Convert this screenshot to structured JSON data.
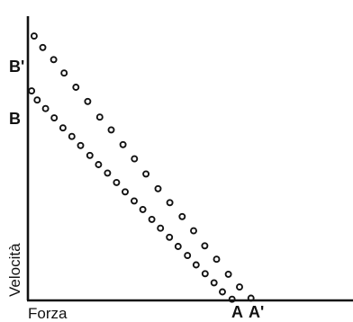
{
  "chart_data": {
    "type": "scatter",
    "title": "",
    "xlabel": "Forza",
    "ylabel": "Velocità",
    "grid": false,
    "legend": "none",
    "xlim": [
      0,
      1
    ],
    "ylim": [
      0,
      1
    ],
    "ink_color": "#111111",
    "point_labels": {
      "outer_y_intercept": "B'",
      "inner_y_intercept": "B",
      "inner_x_intercept": "A",
      "outer_x_intercept": "A'"
    },
    "series": [
      {
        "x": [
          0.02,
          0.048,
          0.083,
          0.117,
          0.155,
          0.193,
          0.232,
          0.269,
          0.307,
          0.344,
          0.381,
          0.42,
          0.458,
          0.498,
          0.535,
          0.571,
          0.609,
          0.647,
          0.683,
          0.72
        ],
        "y": [
          0.93,
          0.89,
          0.847,
          0.8,
          0.75,
          0.7,
          0.645,
          0.6,
          0.548,
          0.498,
          0.445,
          0.393,
          0.344,
          0.295,
          0.245,
          0.192,
          0.145,
          0.092,
          0.047,
          0.008
        ]
      },
      {
        "x": [
          0.012,
          0.03,
          0.057,
          0.085,
          0.113,
          0.142,
          0.17,
          0.2,
          0.228,
          0.257,
          0.286,
          0.314,
          0.343,
          0.371,
          0.4,
          0.428,
          0.457,
          0.485,
          0.515,
          0.543,
          0.572,
          0.601,
          0.628,
          0.659
        ],
        "y": [
          0.737,
          0.705,
          0.675,
          0.642,
          0.607,
          0.577,
          0.545,
          0.51,
          0.478,
          0.448,
          0.415,
          0.382,
          0.35,
          0.32,
          0.285,
          0.254,
          0.222,
          0.19,
          0.158,
          0.125,
          0.094,
          0.062,
          0.03,
          0.004
        ]
      }
    ]
  }
}
